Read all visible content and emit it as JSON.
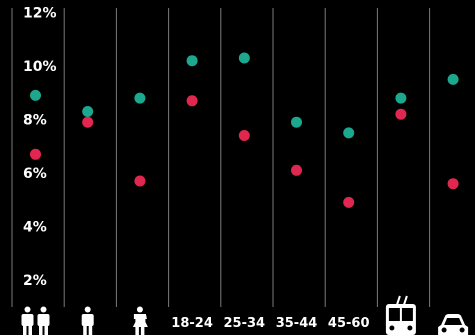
{
  "chart_data": {
    "type": "scatter",
    "title": "",
    "xlabel": "",
    "ylabel": "",
    "ylim": [
      0,
      12
    ],
    "yticks": [
      "2%",
      "4%",
      "6%",
      "8%",
      "10%",
      "12%"
    ],
    "grid": "vertical",
    "legend": "none",
    "categories": [
      {
        "label": "",
        "icon": "people-icon"
      },
      {
        "label": "",
        "icon": "man-icon"
      },
      {
        "label": "",
        "icon": "woman-icon"
      },
      {
        "label": "18-24",
        "icon": ""
      },
      {
        "label": "25-34",
        "icon": ""
      },
      {
        "label": "35-44",
        "icon": ""
      },
      {
        "label": "45-60",
        "icon": ""
      },
      {
        "label": "",
        "icon": "trolleybus-icon"
      },
      {
        "label": "",
        "icon": "car-icon"
      }
    ],
    "series": [
      {
        "color": "#1ba88f",
        "values": [
          8.9,
          8.3,
          8.8,
          10.2,
          10.3,
          7.9,
          7.5,
          8.8,
          9.5
        ]
      },
      {
        "color": "#e0274f",
        "values": [
          6.7,
          7.9,
          5.7,
          8.7,
          7.4,
          6.1,
          4.9,
          8.2,
          5.6
        ]
      }
    ]
  }
}
